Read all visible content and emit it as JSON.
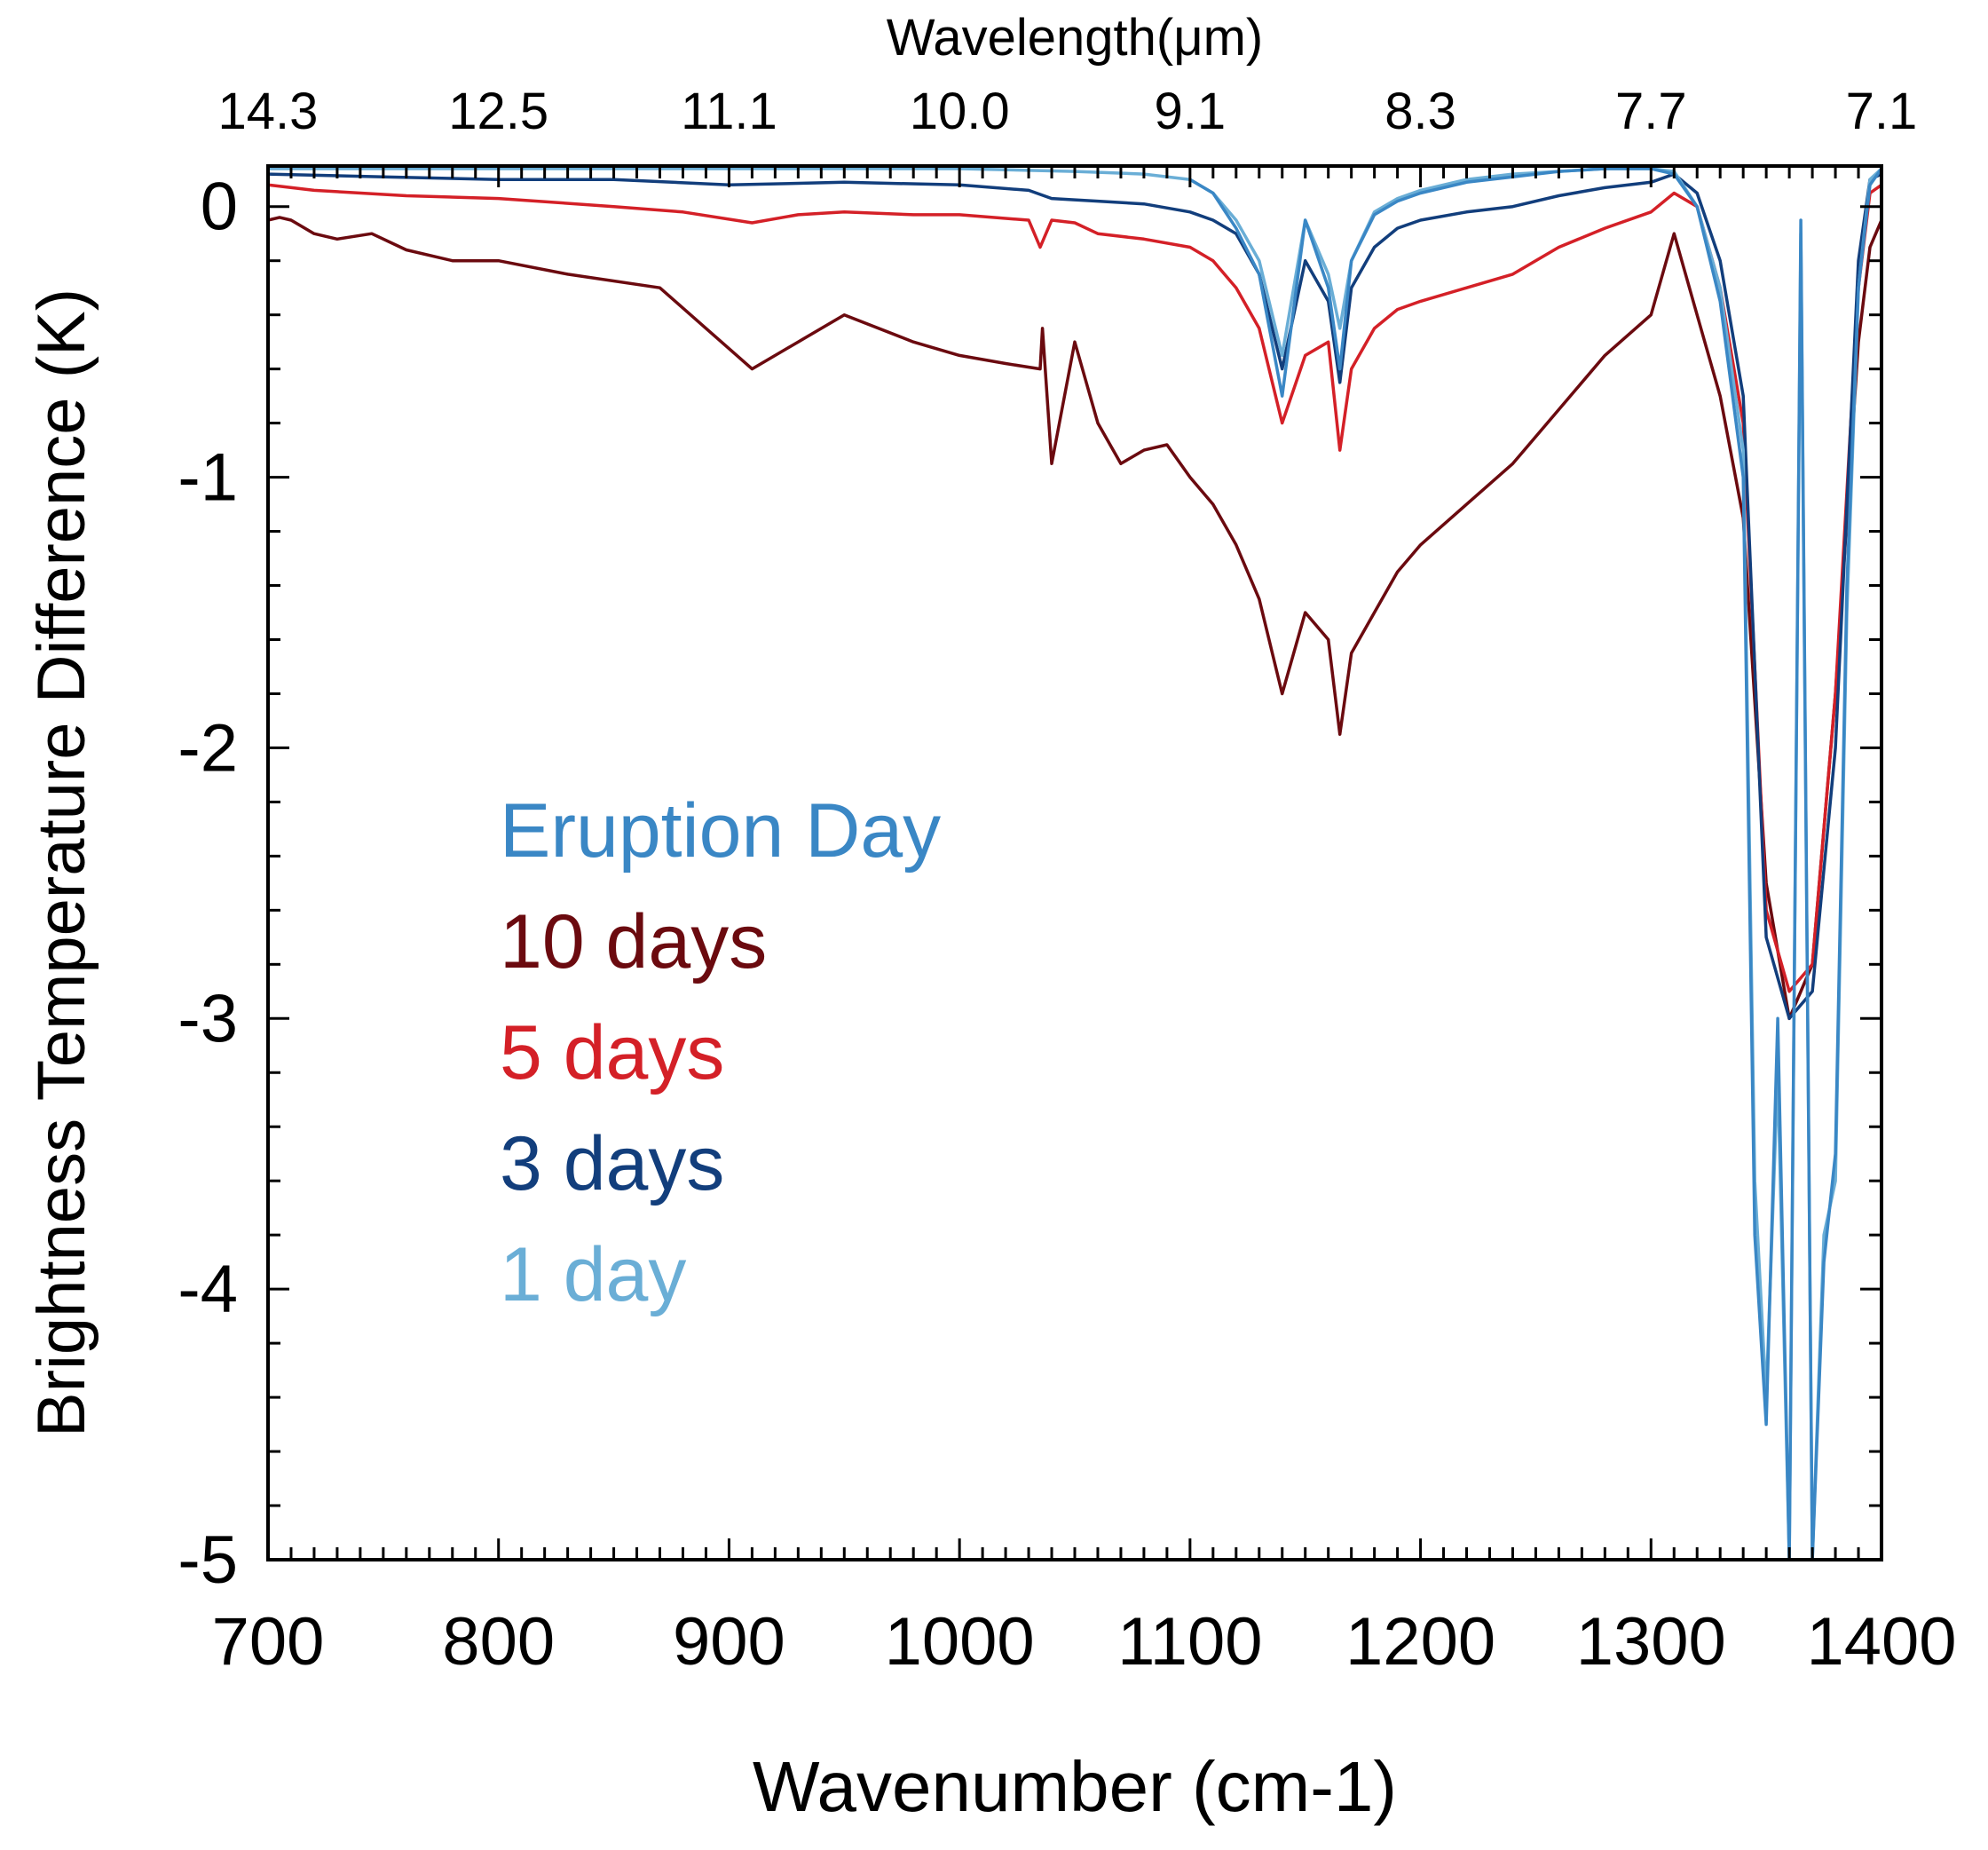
{
  "chart_data": {
    "type": "line",
    "title": "",
    "xlabel": "Wavenumber (cm-1)",
    "ylabel": "Brightness Temperature Difference (K)",
    "top_axis_label": "Wavelength(μm)",
    "xlim": [
      700,
      1400
    ],
    "ylim": [
      -5,
      0.15
    ],
    "x_ticks": [
      700,
      800,
      900,
      1000,
      1100,
      1200,
      1300,
      1400
    ],
    "x_tick_labels": [
      "700",
      "800",
      "900",
      "1000",
      "1100",
      "1200",
      "1300",
      "1400"
    ],
    "y_ticks": [
      0,
      -1,
      -2,
      -3,
      -4,
      -5
    ],
    "y_tick_labels": [
      "0",
      "-1",
      "-2",
      "-3",
      "-4",
      "-5"
    ],
    "top_ticks": [
      {
        "wavenumber": 700,
        "label": "14.3"
      },
      {
        "wavenumber": 800,
        "label": "12.5"
      },
      {
        "wavenumber": 900,
        "label": "11.1"
      },
      {
        "wavenumber": 1000,
        "label": "10.0"
      },
      {
        "wavenumber": 1100,
        "label": "9.1"
      },
      {
        "wavenumber": 1200,
        "label": "8.3"
      },
      {
        "wavenumber": 1300,
        "label": "7.7"
      },
      {
        "wavenumber": 1400,
        "label": "7.1"
      }
    ],
    "grid": false,
    "legend_placement": "center-left",
    "legend_title": "Eruption Day",
    "series": [
      {
        "name": "10 days",
        "color": "#6b0a0f",
        "x": [
          700,
          705,
          710,
          720,
          730,
          745,
          760,
          780,
          800,
          830,
          870,
          890,
          910,
          930,
          950,
          980,
          1000,
          1020,
          1035,
          1036,
          1040,
          1050,
          1060,
          1070,
          1080,
          1090,
          1100,
          1110,
          1120,
          1130,
          1140,
          1150,
          1160,
          1165,
          1170,
          1180,
          1190,
          1200,
          1220,
          1240,
          1260,
          1280,
          1300,
          1310,
          1320,
          1330,
          1340,
          1350,
          1360,
          1370,
          1380,
          1390,
          1395,
          1400
        ],
        "y": [
          -0.05,
          -0.04,
          -0.05,
          -0.1,
          -0.12,
          -0.1,
          -0.16,
          -0.2,
          -0.2,
          -0.25,
          -0.3,
          -0.45,
          -0.6,
          -0.5,
          -0.4,
          -0.5,
          -0.55,
          -0.58,
          -0.6,
          -0.45,
          -0.95,
          -0.5,
          -0.8,
          -0.95,
          -0.9,
          -0.88,
          -1.0,
          -1.1,
          -1.25,
          -1.45,
          -1.8,
          -1.5,
          -1.6,
          -1.95,
          -1.65,
          -1.5,
          -1.35,
          -1.25,
          -1.1,
          -0.95,
          -0.75,
          -0.55,
          -0.4,
          -0.1,
          -0.4,
          -0.7,
          -1.15,
          -2.5,
          -3.0,
          -2.8,
          -1.8,
          -0.5,
          -0.15,
          -0.05
        ]
      },
      {
        "name": "5 days",
        "color": "#d42027",
        "x": [
          700,
          720,
          760,
          800,
          850,
          880,
          910,
          930,
          950,
          980,
          1000,
          1030,
          1035,
          1040,
          1050,
          1060,
          1080,
          1100,
          1110,
          1120,
          1130,
          1140,
          1150,
          1160,
          1165,
          1170,
          1180,
          1190,
          1200,
          1220,
          1240,
          1260,
          1280,
          1300,
          1310,
          1320,
          1330,
          1340,
          1350,
          1360,
          1370,
          1380,
          1390,
          1395,
          1400
        ],
        "y": [
          0.08,
          0.06,
          0.04,
          0.03,
          0.0,
          -0.02,
          -0.06,
          -0.03,
          -0.02,
          -0.03,
          -0.03,
          -0.05,
          -0.15,
          -0.05,
          -0.06,
          -0.1,
          -0.12,
          -0.15,
          -0.2,
          -0.3,
          -0.45,
          -0.8,
          -0.55,
          -0.5,
          -0.9,
          -0.6,
          -0.45,
          -0.38,
          -0.35,
          -0.3,
          -0.25,
          -0.15,
          -0.08,
          -0.02,
          0.05,
          0.0,
          -0.3,
          -0.8,
          -2.6,
          -2.9,
          -2.8,
          -1.8,
          -0.3,
          0.05,
          0.08
        ]
      },
      {
        "name": "3 days",
        "color": "#123e7c",
        "x": [
          700,
          750,
          800,
          850,
          900,
          950,
          1000,
          1030,
          1040,
          1060,
          1080,
          1100,
          1110,
          1120,
          1130,
          1140,
          1150,
          1160,
          1165,
          1170,
          1180,
          1190,
          1200,
          1220,
          1240,
          1260,
          1280,
          1300,
          1310,
          1320,
          1330,
          1340,
          1350,
          1360,
          1370,
          1380,
          1390,
          1395,
          1400
        ],
        "y": [
          0.12,
          0.11,
          0.1,
          0.1,
          0.08,
          0.09,
          0.08,
          0.06,
          0.03,
          0.02,
          0.01,
          -0.02,
          -0.05,
          -0.1,
          -0.25,
          -0.6,
          -0.2,
          -0.35,
          -0.65,
          -0.3,
          -0.15,
          -0.08,
          -0.05,
          -0.02,
          0.0,
          0.04,
          0.07,
          0.09,
          0.12,
          0.05,
          -0.2,
          -0.7,
          -2.7,
          -3.0,
          -2.9,
          -2.0,
          -0.2,
          0.1,
          0.12
        ]
      },
      {
        "name": "1 day",
        "color": "#6aaed6",
        "x": [
          700,
          750,
          800,
          850,
          900,
          950,
          1000,
          1050,
          1080,
          1100,
          1110,
          1120,
          1130,
          1140,
          1150,
          1160,
          1165,
          1170,
          1180,
          1190,
          1200,
          1220,
          1240,
          1260,
          1280,
          1300,
          1310,
          1320,
          1330,
          1340,
          1345,
          1350,
          1355,
          1360,
          1365,
          1370,
          1375,
          1380,
          1385,
          1390,
          1395,
          1400
        ],
        "y": [
          0.14,
          0.14,
          0.14,
          0.14,
          0.14,
          0.14,
          0.14,
          0.13,
          0.12,
          0.1,
          0.05,
          -0.05,
          -0.2,
          -0.55,
          -0.05,
          -0.25,
          -0.45,
          -0.2,
          -0.02,
          0.03,
          0.06,
          0.1,
          0.12,
          0.13,
          0.14,
          0.14,
          0.13,
          0.0,
          -0.3,
          -0.9,
          -3.6,
          -4.4,
          -3.2,
          -5.0,
          -0.1,
          -5.0,
          -3.8,
          -3.6,
          -1.5,
          -0.3,
          0.1,
          0.14
        ]
      },
      {
        "name": "Eruption Day",
        "color": "#3a87c5",
        "x": [
          1100,
          1110,
          1120,
          1130,
          1140,
          1150,
          1160,
          1165,
          1170,
          1180,
          1190,
          1200,
          1220,
          1240,
          1260,
          1280,
          1300,
          1310,
          1320,
          1330,
          1340,
          1345,
          1350,
          1355,
          1360,
          1365,
          1370,
          1375,
          1380,
          1385,
          1390,
          1395,
          1400
        ],
        "y": [
          0.1,
          0.05,
          -0.08,
          -0.25,
          -0.7,
          -0.05,
          -0.3,
          -0.6,
          -0.2,
          -0.03,
          0.02,
          0.05,
          0.09,
          0.11,
          0.13,
          0.14,
          0.14,
          0.12,
          0.0,
          -0.35,
          -1.0,
          -3.8,
          -4.5,
          -3.0,
          -5.1,
          -0.05,
          -5.1,
          -3.9,
          -3.5,
          -1.4,
          -0.3,
          0.08,
          0.14
        ]
      }
    ],
    "legend": [
      {
        "label": "Eruption Day",
        "color": "#3a87c5"
      },
      {
        "label": "10 days",
        "color": "#6b0a0f"
      },
      {
        "label": "5 days",
        "color": "#d42027"
      },
      {
        "label": "3 days",
        "color": "#123e7c"
      },
      {
        "label": "1 day",
        "color": "#6aaed6"
      }
    ]
  }
}
